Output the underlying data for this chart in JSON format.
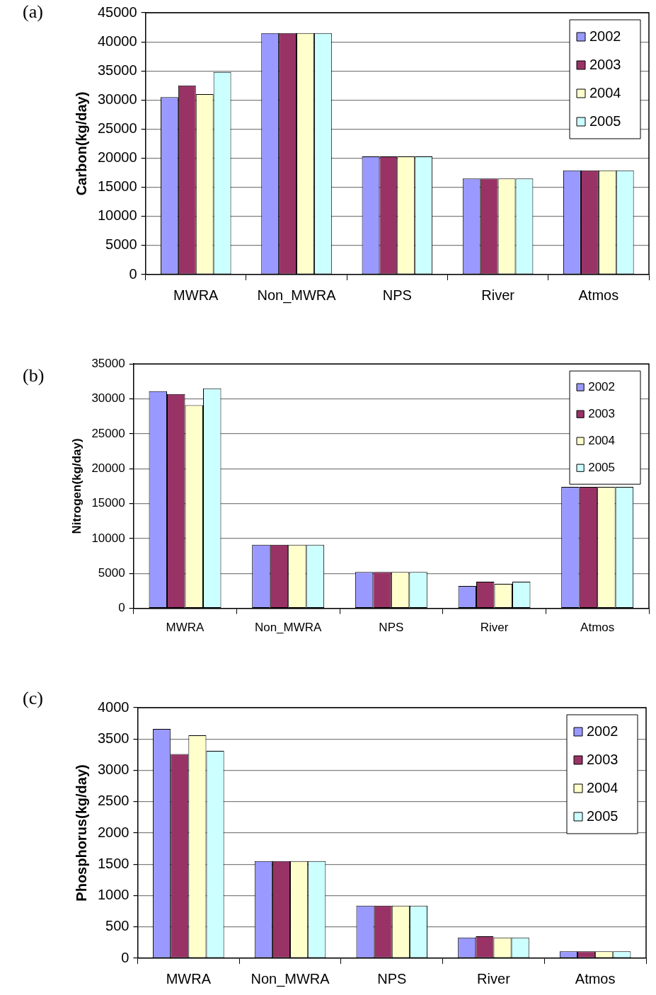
{
  "chart_data": [
    {
      "type": "bar",
      "ylabel": "Carbon(kg/day)",
      "annotations": [
        "(a)"
      ],
      "categories": [
        "MWRA",
        "Non_MWRA",
        "NPS",
        "River",
        "Atmos"
      ],
      "series": [
        {
          "name": "2002",
          "color": "#9999ff",
          "values": [
            30500,
            41500,
            20300,
            16500,
            17900
          ]
        },
        {
          "name": "2003",
          "color": "#993366",
          "values": [
            32500,
            41500,
            20300,
            16500,
            17900
          ]
        },
        {
          "name": "2004",
          "color": "#ffffcc",
          "values": [
            31000,
            41500,
            20300,
            16500,
            17900
          ]
        },
        {
          "name": "2005",
          "color": "#ccffff",
          "values": [
            34800,
            41500,
            20300,
            16500,
            17900
          ]
        }
      ],
      "ylim": [
        0,
        45000
      ],
      "yticks": [
        0,
        5000,
        10000,
        15000,
        20000,
        25000,
        30000,
        35000,
        40000,
        45000
      ],
      "grid": "y",
      "legend": "top right"
    },
    {
      "type": "bar",
      "ylabel": "Nitrogen(kg/day)",
      "annotations": [
        "(b)"
      ],
      "categories": [
        "MWRA",
        "Non_MWRA",
        "NPS",
        "River",
        "Atmos"
      ],
      "series": [
        {
          "name": "2002",
          "color": "#9999ff",
          "values": [
            31100,
            9100,
            5200,
            3200,
            17400
          ]
        },
        {
          "name": "2003",
          "color": "#993366",
          "values": [
            30700,
            9100,
            5200,
            3800,
            17400
          ]
        },
        {
          "name": "2004",
          "color": "#ffffcc",
          "values": [
            29100,
            9100,
            5200,
            3500,
            17400
          ]
        },
        {
          "name": "2005",
          "color": "#ccffff",
          "values": [
            31500,
            9100,
            5200,
            3800,
            17400
          ]
        }
      ],
      "ylim": [
        0,
        35000
      ],
      "yticks": [
        0,
        5000,
        10000,
        15000,
        20000,
        25000,
        30000,
        35000
      ],
      "grid": "y",
      "legend": "top right"
    },
    {
      "type": "bar",
      "ylabel": "Phosphorus(kg/day)",
      "annotations": [
        "(c)"
      ],
      "categories": [
        "MWRA",
        "Non_MWRA",
        "NPS",
        "River",
        "Atmos"
      ],
      "series": [
        {
          "name": "2002",
          "color": "#9999ff",
          "values": [
            3660,
            1550,
            840,
            330,
            110
          ]
        },
        {
          "name": "2003",
          "color": "#993366",
          "values": [
            3260,
            1550,
            840,
            350,
            110
          ]
        },
        {
          "name": "2004",
          "color": "#ffffcc",
          "values": [
            3560,
            1550,
            840,
            330,
            110
          ]
        },
        {
          "name": "2005",
          "color": "#ccffff",
          "values": [
            3310,
            1550,
            840,
            330,
            110
          ]
        }
      ],
      "ylim": [
        0,
        4000
      ],
      "yticks": [
        0,
        500,
        1000,
        1500,
        2000,
        2500,
        3000,
        3500,
        4000
      ],
      "grid": "y",
      "legend": "top right"
    }
  ]
}
